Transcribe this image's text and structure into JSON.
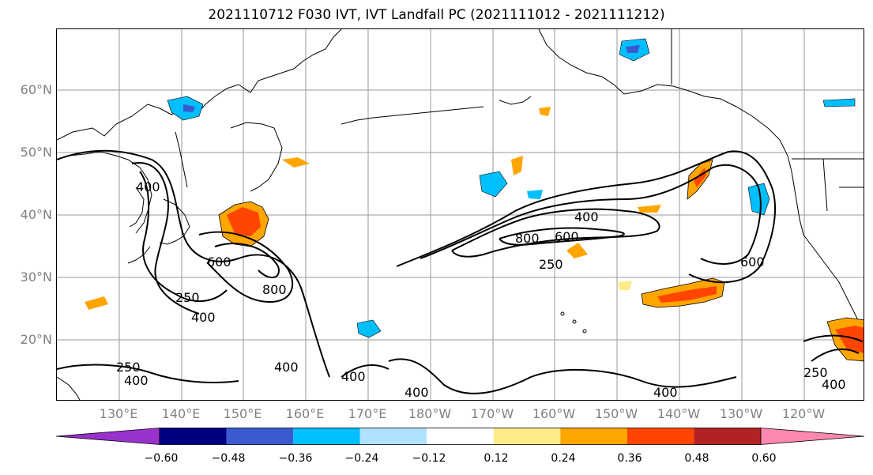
{
  "title": "2021110712 F030 IVT, IVT Landfall PC (2021111012 - 2021111212)",
  "lat_labels": [
    "60°N",
    "50°N",
    "40°N",
    "30°N",
    "20°N"
  ],
  "lon_labels": [
    "130°E",
    "140°E",
    "150°E",
    "160°E",
    "170°E",
    "180°W",
    "170°W",
    "160°W",
    "150°W",
    "140°W",
    "130°W",
    "120°W"
  ],
  "contour_labels": [
    "400",
    "800",
    "600",
    "250",
    "600",
    "250",
    "600",
    "800",
    "400",
    "250",
    "400",
    "400",
    "400",
    "400",
    "400",
    "400",
    "250",
    "400"
  ],
  "colorbar": {
    "ticks": [
      "−0.60",
      "−0.48",
      "−0.36",
      "−0.24",
      "−0.12",
      "0.12",
      "0.24",
      "0.36",
      "0.48",
      "0.60"
    ],
    "colors": [
      "#9932cc",
      "#000080",
      "#3a5bd0",
      "#00bfff",
      "#b0e2ff",
      "#ffffff",
      "#ffeb87",
      "#ffa500",
      "#ff4500",
      "#b22222",
      "#ff88b0"
    ]
  },
  "map": {
    "grid": true,
    "land_color": "#ffffff",
    "coastline_color": "#000000",
    "contour_color": "#000000"
  }
}
